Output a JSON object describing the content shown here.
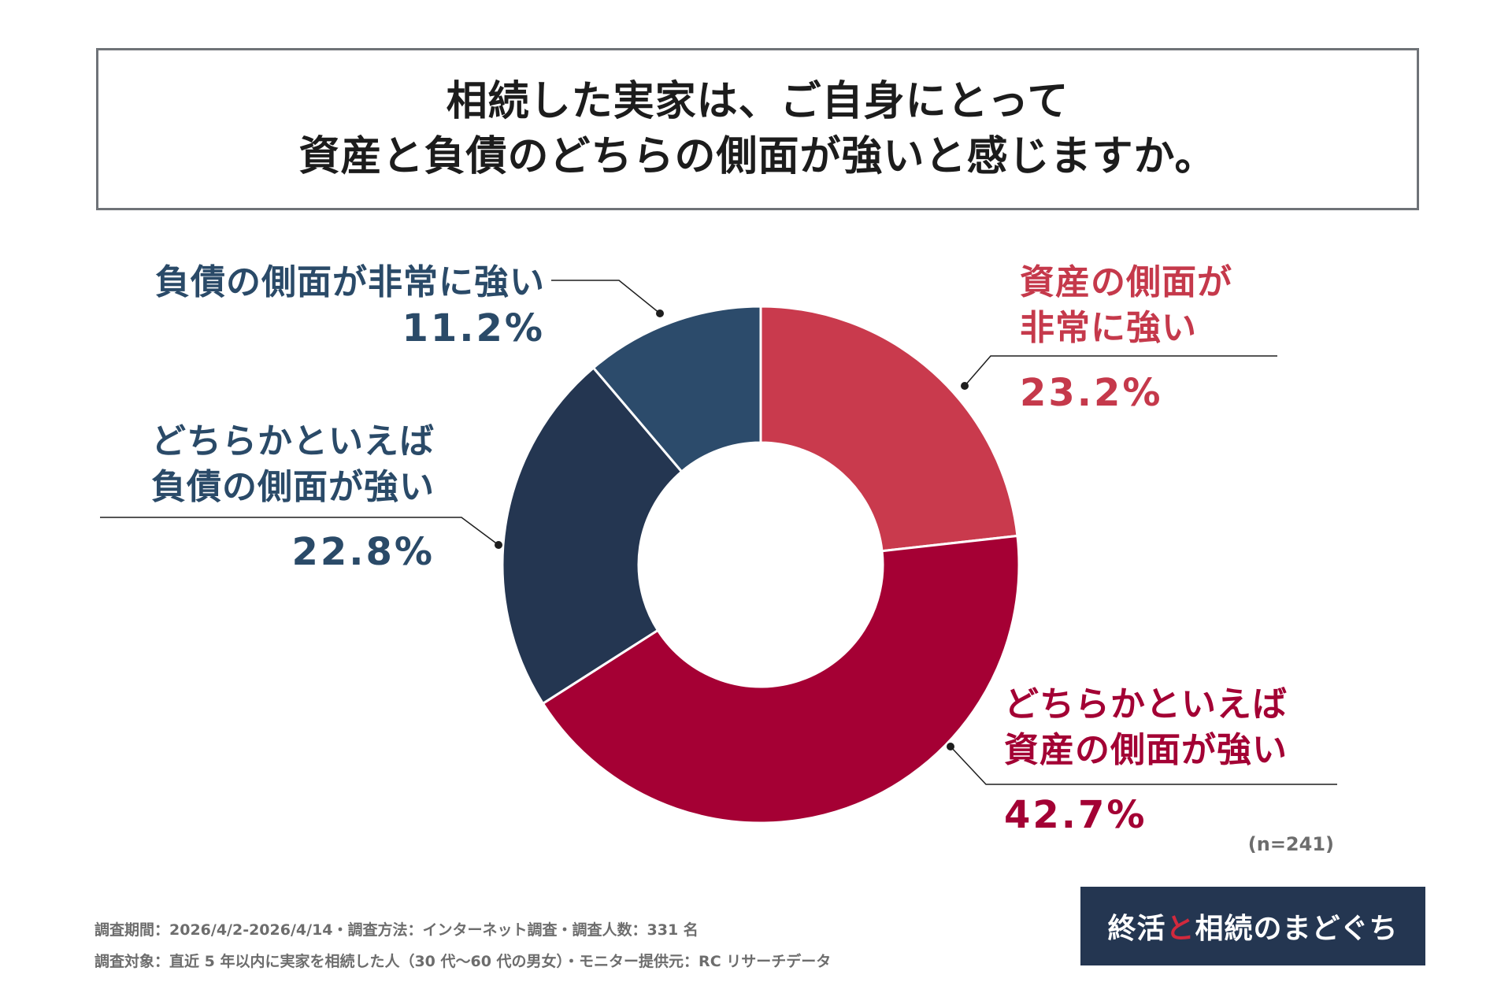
{
  "title": {
    "line1": "相続した実家は、ご自身にとって",
    "line2": "資産と負債のどちらの側面が強いと感じますか。"
  },
  "chart_data": {
    "type": "pie",
    "slices": [
      {
        "label": "資産の側面が非常に強い",
        "value": 23.2,
        "color": "#c93a4d"
      },
      {
        "label": "どちらかといえば資産の側面が強い",
        "value": 42.7,
        "color": "#a50034"
      },
      {
        "label": "どちらかといえば負債の側面が強い",
        "value": 22.8,
        "color": "#243651"
      },
      {
        "label": "負債の側面が非常に強い",
        "value": 11.2,
        "color": "#2c4b6b"
      }
    ],
    "labels": {
      "asset_strong": {
        "line1": "資産の側面が",
        "line2": "非常に強い",
        "pct": "23.2%"
      },
      "asset_some": {
        "line1": "どちらかといえば",
        "line2": "資産の側面が強い",
        "pct": "42.7%"
      },
      "debt_some": {
        "line1": "どちらかといえば",
        "line2": "負債の側面が強い",
        "pct": "22.8%"
      },
      "debt_strong": {
        "line1": "負債の側面が非常に強い",
        "pct": "11.2%"
      }
    },
    "sample_note": "(n=241)"
  },
  "footer": {
    "line1": "調査期間：2026/4/2-2026/4/14・調査方法：インターネット調査・調査人数：331 名",
    "line2": "調査対象：直近 5 年以内に実家を相続した人（30 代〜60 代の男女）・モニター提供元：RC リサーチデータ"
  },
  "brand": {
    "part1": "終活",
    "part2": "と",
    "part3": "相続のまどぐち",
    "bg_color": "#243651"
  }
}
